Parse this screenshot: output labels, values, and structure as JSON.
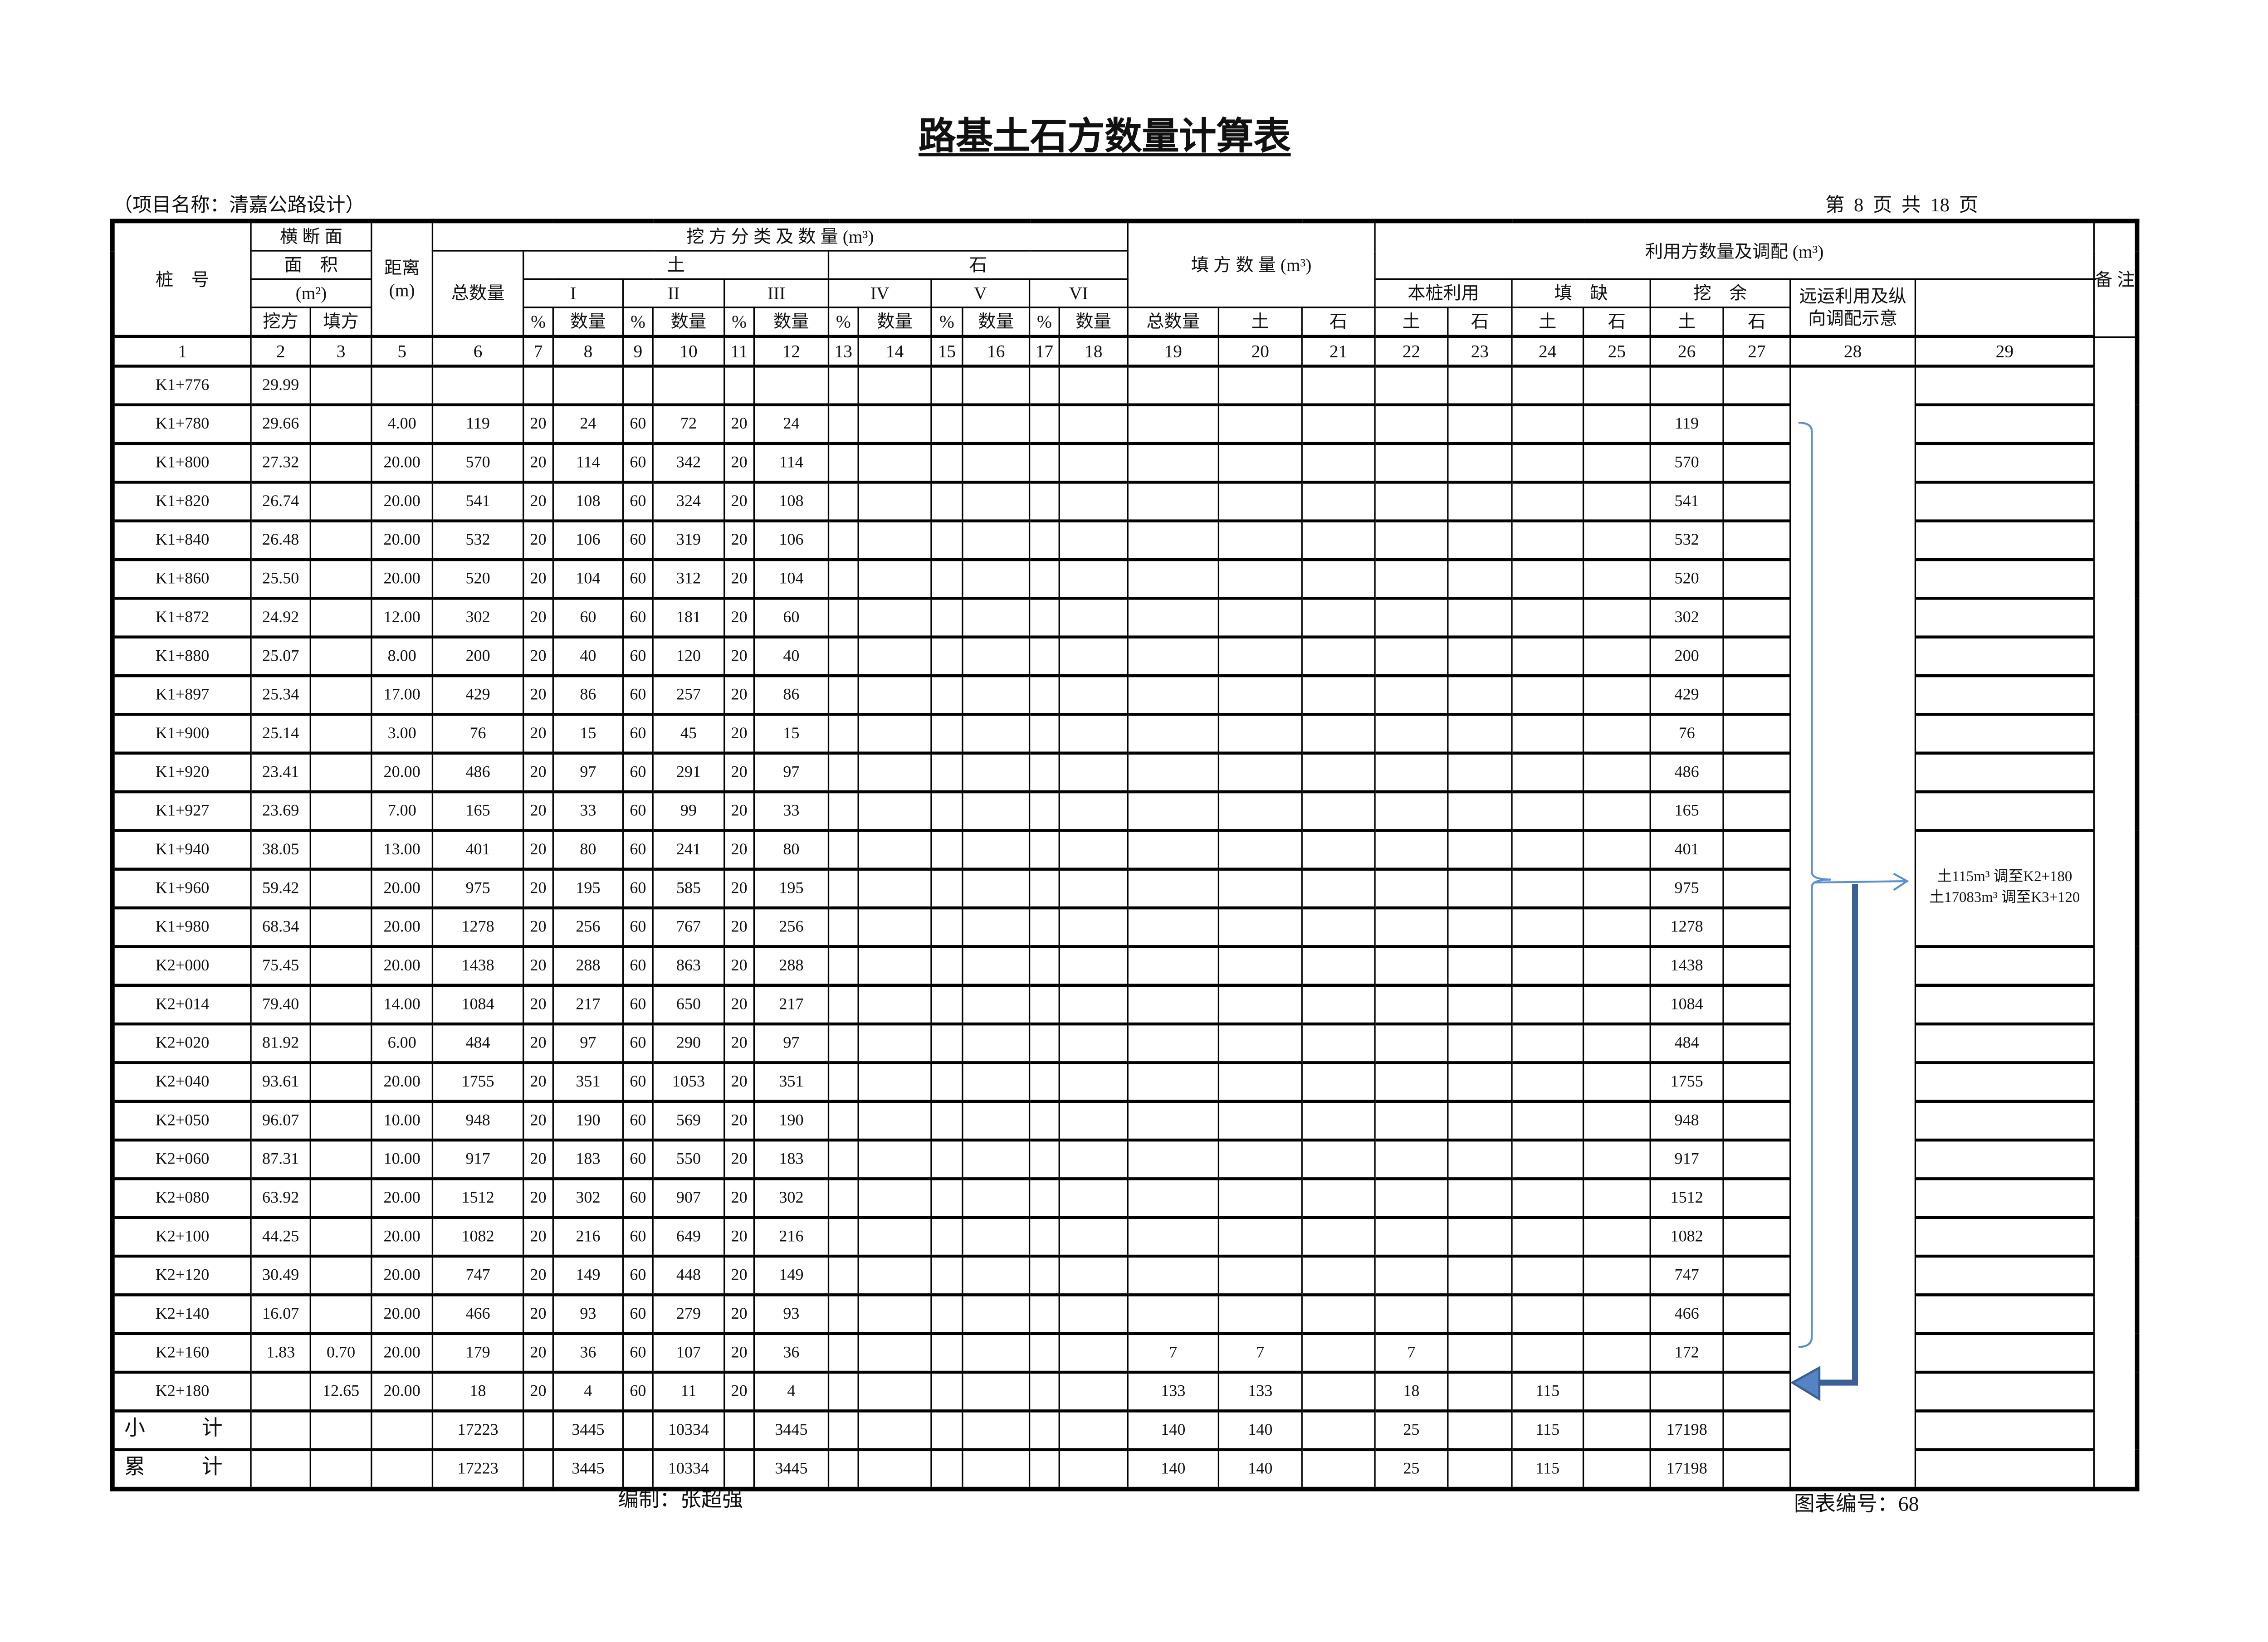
{
  "title": "路基土石方数量计算表",
  "project": "（项目名称：清嘉公路设计）",
  "page_info": "第 8 页    共 18 页",
  "editor": "编制：张超强",
  "figure_no": "图表编号：68",
  "colors": {
    "bracket": "#5b8fd0",
    "thick_arrow": "#3a6096",
    "arrow_fill": "#5584c4"
  },
  "header": {
    "station": "桩　号",
    "section_l1": "横 断 面",
    "section_l2": "面　积",
    "section_unit": "(m²)",
    "cut": "挖方",
    "fill": "填方",
    "distance": "距离",
    "distance_unit": "(m)",
    "excavation": "挖 方 分 类 及 数 量 (m³)",
    "total": "总数量",
    "soil": "土",
    "rock": "石",
    "classes": [
      "I",
      "II",
      "III",
      "IV",
      "V",
      "VI"
    ],
    "pct": "%",
    "qty": "数量",
    "fill_qty": "填 方 数 量 (m³)",
    "fill_total": "总数量",
    "utilization": "利用方数量及调配 (m³)",
    "this_pile": "本桩利用",
    "shortage": "填　缺",
    "surplus": "挖　余",
    "haul": "远运利用及纵向调配示意",
    "remarks": "备 注",
    "col_numbers": [
      "1",
      "2",
      "3",
      "5",
      "6",
      "7",
      "8",
      "9",
      "10",
      "11",
      "12",
      "13",
      "14",
      "15",
      "16",
      "17",
      "18",
      "19",
      "20",
      "21",
      "22",
      "23",
      "24",
      "25",
      "26",
      "27",
      "28",
      "29"
    ]
  },
  "rows": [
    [
      "K1+776",
      "29.99",
      "",
      "",
      "",
      "",
      "",
      "",
      "",
      "",
      "",
      "",
      "",
      "",
      "",
      "",
      "",
      "",
      "",
      "",
      "",
      "",
      "",
      "",
      "",
      ""
    ],
    [
      "K1+780",
      "29.66",
      "",
      "4.00",
      "119",
      "20",
      "24",
      "60",
      "72",
      "20",
      "24",
      "",
      "",
      "",
      "",
      "",
      "",
      "",
      "",
      "",
      "",
      "",
      "",
      "",
      "119",
      ""
    ],
    [
      "K1+800",
      "27.32",
      "",
      "20.00",
      "570",
      "20",
      "114",
      "60",
      "342",
      "20",
      "114",
      "",
      "",
      "",
      "",
      "",
      "",
      "",
      "",
      "",
      "",
      "",
      "",
      "",
      "570",
      ""
    ],
    [
      "K1+820",
      "26.74",
      "",
      "20.00",
      "541",
      "20",
      "108",
      "60",
      "324",
      "20",
      "108",
      "",
      "",
      "",
      "",
      "",
      "",
      "",
      "",
      "",
      "",
      "",
      "",
      "",
      "541",
      ""
    ],
    [
      "K1+840",
      "26.48",
      "",
      "20.00",
      "532",
      "20",
      "106",
      "60",
      "319",
      "20",
      "106",
      "",
      "",
      "",
      "",
      "",
      "",
      "",
      "",
      "",
      "",
      "",
      "",
      "",
      "532",
      ""
    ],
    [
      "K1+860",
      "25.50",
      "",
      "20.00",
      "520",
      "20",
      "104",
      "60",
      "312",
      "20",
      "104",
      "",
      "",
      "",
      "",
      "",
      "",
      "",
      "",
      "",
      "",
      "",
      "",
      "",
      "520",
      ""
    ],
    [
      "K1+872",
      "24.92",
      "",
      "12.00",
      "302",
      "20",
      "60",
      "60",
      "181",
      "20",
      "60",
      "",
      "",
      "",
      "",
      "",
      "",
      "",
      "",
      "",
      "",
      "",
      "",
      "",
      "302",
      ""
    ],
    [
      "K1+880",
      "25.07",
      "",
      "8.00",
      "200",
      "20",
      "40",
      "60",
      "120",
      "20",
      "40",
      "",
      "",
      "",
      "",
      "",
      "",
      "",
      "",
      "",
      "",
      "",
      "",
      "",
      "200",
      ""
    ],
    [
      "K1+897",
      "25.34",
      "",
      "17.00",
      "429",
      "20",
      "86",
      "60",
      "257",
      "20",
      "86",
      "",
      "",
      "",
      "",
      "",
      "",
      "",
      "",
      "",
      "",
      "",
      "",
      "",
      "429",
      ""
    ],
    [
      "K1+900",
      "25.14",
      "",
      "3.00",
      "76",
      "20",
      "15",
      "60",
      "45",
      "20",
      "15",
      "",
      "",
      "",
      "",
      "",
      "",
      "",
      "",
      "",
      "",
      "",
      "",
      "",
      "76",
      ""
    ],
    [
      "K1+920",
      "23.41",
      "",
      "20.00",
      "486",
      "20",
      "97",
      "60",
      "291",
      "20",
      "97",
      "",
      "",
      "",
      "",
      "",
      "",
      "",
      "",
      "",
      "",
      "",
      "",
      "",
      "486",
      ""
    ],
    [
      "K1+927",
      "23.69",
      "",
      "7.00",
      "165",
      "20",
      "33",
      "60",
      "99",
      "20",
      "33",
      "",
      "",
      "",
      "",
      "",
      "",
      "",
      "",
      "",
      "",
      "",
      "",
      "",
      "165",
      ""
    ],
    [
      "K1+940",
      "38.05",
      "",
      "13.00",
      "401",
      "20",
      "80",
      "60",
      "241",
      "20",
      "80",
      "",
      "",
      "",
      "",
      "",
      "",
      "",
      "",
      "",
      "",
      "",
      "",
      "",
      "401",
      ""
    ],
    [
      "K1+960",
      "59.42",
      "",
      "20.00",
      "975",
      "20",
      "195",
      "60",
      "585",
      "20",
      "195",
      "",
      "",
      "",
      "",
      "",
      "",
      "",
      "",
      "",
      "",
      "",
      "",
      "",
      "975",
      ""
    ],
    [
      "K1+980",
      "68.34",
      "",
      "20.00",
      "1278",
      "20",
      "256",
      "60",
      "767",
      "20",
      "256",
      "",
      "",
      "",
      "",
      "",
      "",
      "",
      "",
      "",
      "",
      "",
      "",
      "",
      "1278",
      ""
    ],
    [
      "K2+000",
      "75.45",
      "",
      "20.00",
      "1438",
      "20",
      "288",
      "60",
      "863",
      "20",
      "288",
      "",
      "",
      "",
      "",
      "",
      "",
      "",
      "",
      "",
      "",
      "",
      "",
      "",
      "1438",
      ""
    ],
    [
      "K2+014",
      "79.40",
      "",
      "14.00",
      "1084",
      "20",
      "217",
      "60",
      "650",
      "20",
      "217",
      "",
      "",
      "",
      "",
      "",
      "",
      "",
      "",
      "",
      "",
      "",
      "",
      "",
      "1084",
      ""
    ],
    [
      "K2+020",
      "81.92",
      "",
      "6.00",
      "484",
      "20",
      "97",
      "60",
      "290",
      "20",
      "97",
      "",
      "",
      "",
      "",
      "",
      "",
      "",
      "",
      "",
      "",
      "",
      "",
      "",
      "484",
      ""
    ],
    [
      "K2+040",
      "93.61",
      "",
      "20.00",
      "1755",
      "20",
      "351",
      "60",
      "1053",
      "20",
      "351",
      "",
      "",
      "",
      "",
      "",
      "",
      "",
      "",
      "",
      "",
      "",
      "",
      "",
      "1755",
      ""
    ],
    [
      "K2+050",
      "96.07",
      "",
      "10.00",
      "948",
      "20",
      "190",
      "60",
      "569",
      "20",
      "190",
      "",
      "",
      "",
      "",
      "",
      "",
      "",
      "",
      "",
      "",
      "",
      "",
      "",
      "948",
      ""
    ],
    [
      "K2+060",
      "87.31",
      "",
      "10.00",
      "917",
      "20",
      "183",
      "60",
      "550",
      "20",
      "183",
      "",
      "",
      "",
      "",
      "",
      "",
      "",
      "",
      "",
      "",
      "",
      "",
      "",
      "917",
      ""
    ],
    [
      "K2+080",
      "63.92",
      "",
      "20.00",
      "1512",
      "20",
      "302",
      "60",
      "907",
      "20",
      "302",
      "",
      "",
      "",
      "",
      "",
      "",
      "",
      "",
      "",
      "",
      "",
      "",
      "",
      "1512",
      ""
    ],
    [
      "K2+100",
      "44.25",
      "",
      "20.00",
      "1082",
      "20",
      "216",
      "60",
      "649",
      "20",
      "216",
      "",
      "",
      "",
      "",
      "",
      "",
      "",
      "",
      "",
      "",
      "",
      "",
      "",
      "1082",
      ""
    ],
    [
      "K2+120",
      "30.49",
      "",
      "20.00",
      "747",
      "20",
      "149",
      "60",
      "448",
      "20",
      "149",
      "",
      "",
      "",
      "",
      "",
      "",
      "",
      "",
      "",
      "",
      "",
      "",
      "",
      "747",
      ""
    ],
    [
      "K2+140",
      "16.07",
      "",
      "20.00",
      "466",
      "20",
      "93",
      "60",
      "279",
      "20",
      "93",
      "",
      "",
      "",
      "",
      "",
      "",
      "",
      "",
      "",
      "",
      "",
      "",
      "",
      "466",
      ""
    ],
    [
      "K2+160",
      "1.83",
      "0.70",
      "20.00",
      "179",
      "20",
      "36",
      "60",
      "107",
      "20",
      "36",
      "",
      "",
      "",
      "",
      "",
      "",
      "7",
      "7",
      "",
      "7",
      "",
      "",
      "",
      "172",
      ""
    ],
    [
      "K2+180",
      "",
      "12.65",
      "20.00",
      "18",
      "20",
      "4",
      "60",
      "11",
      "20",
      "4",
      "",
      "",
      "",
      "",
      "",
      "",
      "133",
      "133",
      "",
      "18",
      "",
      "115",
      "",
      "",
      ""
    ],
    [
      "小　计",
      "",
      "",
      "",
      "17223",
      "",
      "3445",
      "",
      "10334",
      "",
      "3445",
      "",
      "",
      "",
      "",
      "",
      "",
      "140",
      "140",
      "",
      "25",
      "",
      "115",
      "",
      "17198",
      ""
    ],
    [
      "累　计",
      "",
      "",
      "",
      "17223",
      "",
      "3445",
      "",
      "10334",
      "",
      "3445",
      "",
      "",
      "",
      "",
      "",
      "",
      "140",
      "140",
      "",
      "25",
      "",
      "115",
      "",
      "17198",
      ""
    ]
  ],
  "remark": {
    "line1": "土115m³ 调至K2+180",
    "line2": "土17083m³ 调至K3+120"
  }
}
